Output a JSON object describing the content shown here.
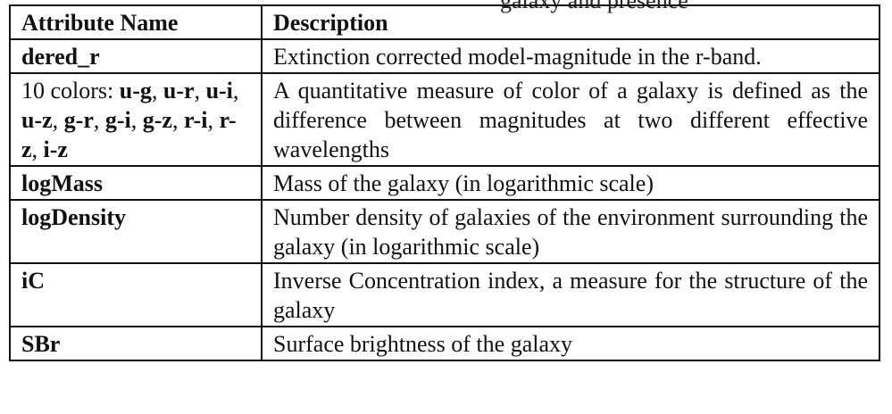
{
  "clipped_caption": "galaxy and presence",
  "table": {
    "headers": {
      "attribute": "Attribute Name",
      "description": "Description"
    },
    "rows": [
      {
        "attribute": "dered_r",
        "description": "Extinction corrected model-magnitude in the r-band."
      },
      {
        "attribute_prefix": "10 colors: ",
        "colors": [
          "u-g",
          "u-r",
          "u-i",
          "u-z",
          "g-r",
          "g-i",
          "g-z",
          "r-i",
          "r-z",
          "i-z"
        ],
        "description": "A quantitative measure of color of a galaxy is defined as the difference between magnitudes at two different effective wavelengths"
      },
      {
        "attribute": "logMass",
        "description": "Mass of the galaxy (in logarithmic scale)"
      },
      {
        "attribute": "logDensity",
        "description": "Number density of galaxies of the environment surrounding the galaxy (in logarithmic scale)"
      },
      {
        "attribute": "iC",
        "description": "Inverse Concentration index, a measure for the structure of the galaxy"
      },
      {
        "attribute": "SBr",
        "description": "Surface brightness of the galaxy"
      }
    ]
  }
}
